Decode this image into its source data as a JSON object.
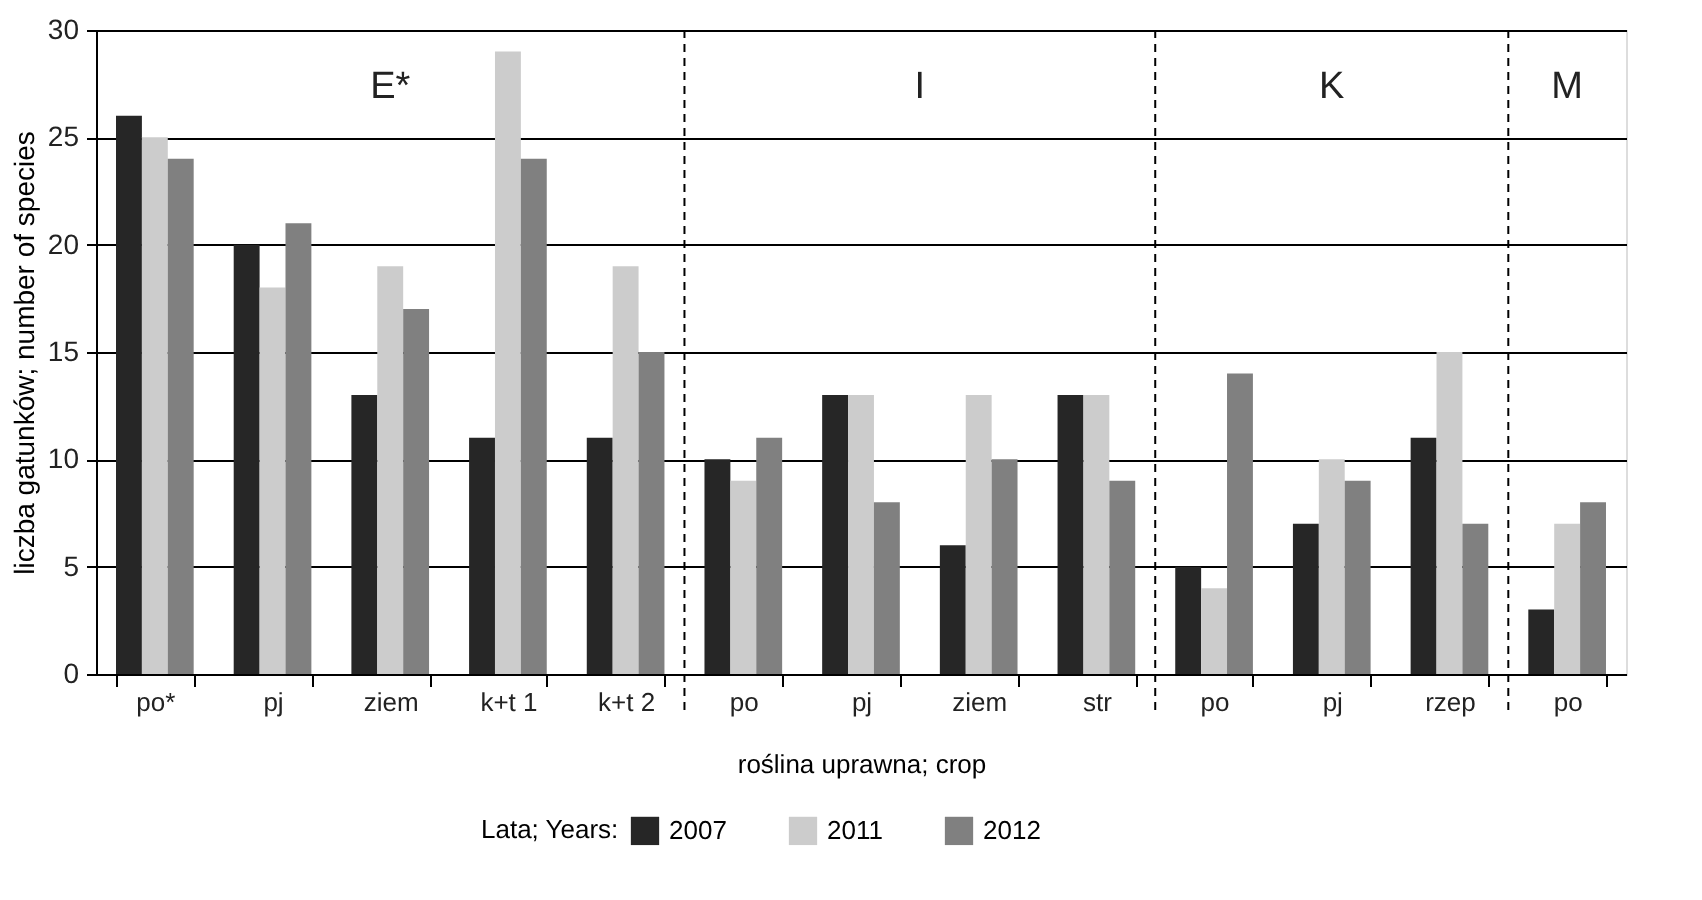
{
  "chart_data": {
    "type": "bar",
    "xlabel": "roślina uprawna; crop",
    "ylabel": "liczba gatunków; number of species",
    "legend_title": "Lata; Years:",
    "categories": [
      "po*",
      "pj",
      "ziem",
      "k+t 1",
      "k+t 2",
      "po",
      "pj",
      "ziem",
      "str",
      "po",
      "pj",
      "rzep",
      "po"
    ],
    "series": [
      {
        "name": "2007",
        "color": "#262626",
        "values": [
          26,
          20,
          13,
          11,
          11,
          10,
          13,
          6,
          13,
          5,
          7,
          11,
          3
        ]
      },
      {
        "name": "2011",
        "color": "#cccccc",
        "values": [
          25,
          18,
          19,
          29,
          19,
          9,
          13,
          13,
          13,
          4,
          10,
          15,
          7
        ]
      },
      {
        "name": "2012",
        "color": "#808080",
        "values": [
          24,
          21,
          17,
          24,
          15,
          11,
          8,
          10,
          9,
          14,
          9,
          7,
          8
        ]
      }
    ],
    "ylim": [
      0,
      30
    ],
    "yticks": [
      0,
      5,
      10,
      15,
      20,
      25,
      30
    ],
    "grid": "y",
    "legend": "bottom",
    "annotations": [
      "E*",
      "I",
      "K",
      "M"
    ]
  }
}
